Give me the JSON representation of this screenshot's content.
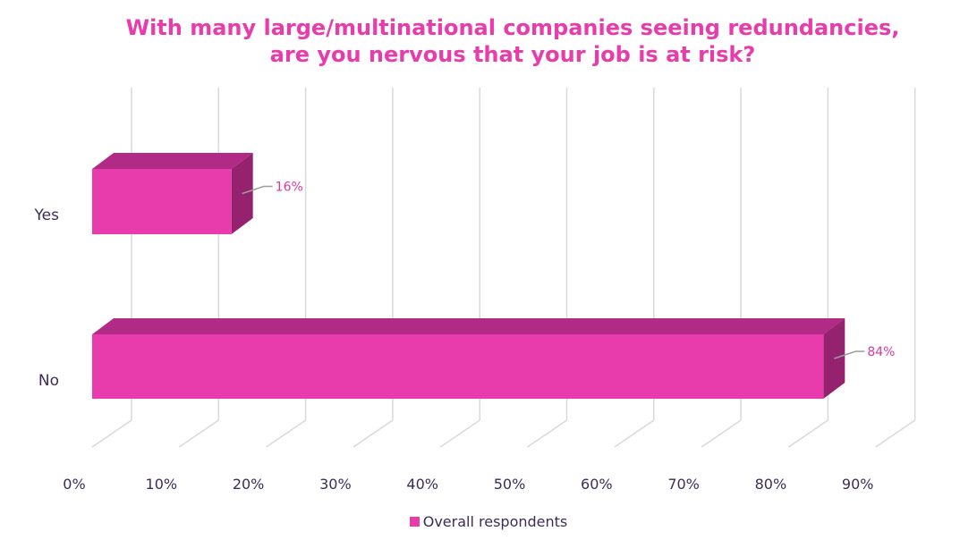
{
  "chart_data": {
    "type": "bar",
    "orientation": "horizontal",
    "style": "3d",
    "title": "With many large/multinational companies seeing redundancies, are you nervous that your job is at risk?",
    "categories": [
      "Yes",
      "No"
    ],
    "series": [
      {
        "name": "Overall respondents",
        "values": [
          16,
          84
        ],
        "labels": [
          "16%",
          "84%"
        ]
      }
    ],
    "xaxis": {
      "ticks": [
        "0%",
        "10%",
        "20%",
        "30%",
        "40%",
        "50%",
        "60%",
        "70%",
        "80%",
        "90%"
      ],
      "xlim": [
        0,
        90
      ],
      "grid": true
    },
    "legend": {
      "position": "bottom"
    },
    "colors": {
      "bar_front": "#e83cac",
      "bar_top": "#b02a86",
      "bar_side": "#95226f",
      "title": "#e83cac",
      "label": "#d63aa2",
      "text": "#3c2c5a",
      "grid": "#d9d9d9"
    }
  }
}
